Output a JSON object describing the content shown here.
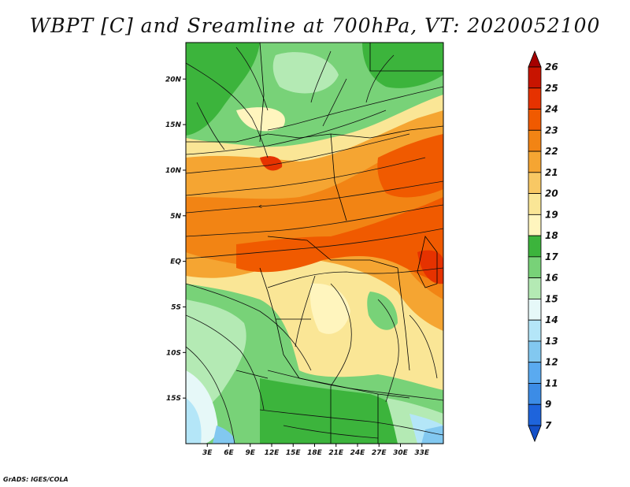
{
  "title": "WBPT [C] and Sreamline at 700hPa, VT: 2020052100",
  "credit": "GrADS: IGES/COLA",
  "map": {
    "lat_labels": [
      "20N",
      "15N",
      "10N",
      "5N",
      "EQ",
      "5S",
      "10S",
      "15S"
    ],
    "lon_labels": [
      "3E",
      "6E",
      "9E",
      "12E",
      "15E",
      "18E",
      "21E",
      "24E",
      "27E",
      "30E",
      "33E"
    ],
    "lat_range": [
      -20,
      24
    ],
    "lon_range": [
      0,
      36
    ]
  },
  "colorbar": {
    "labels": [
      "26",
      "25",
      "24",
      "23",
      "22",
      "21",
      "20",
      "19",
      "18",
      "17",
      "16",
      "15",
      "14",
      "13",
      "12",
      "11",
      "9",
      "7"
    ],
    "colors": [
      "#a50000",
      "#c81400",
      "#e63200",
      "#f05a00",
      "#f28414",
      "#f5a532",
      "#f8c864",
      "#fae696",
      "#fff5be",
      "#3cb43c",
      "#78d278",
      "#b4eab4",
      "#e6f8f8",
      "#b4e6f8",
      "#82c8f0",
      "#5aaaf0",
      "#3c8ce6",
      "#1e64dc",
      "#1450c8"
    ]
  }
}
